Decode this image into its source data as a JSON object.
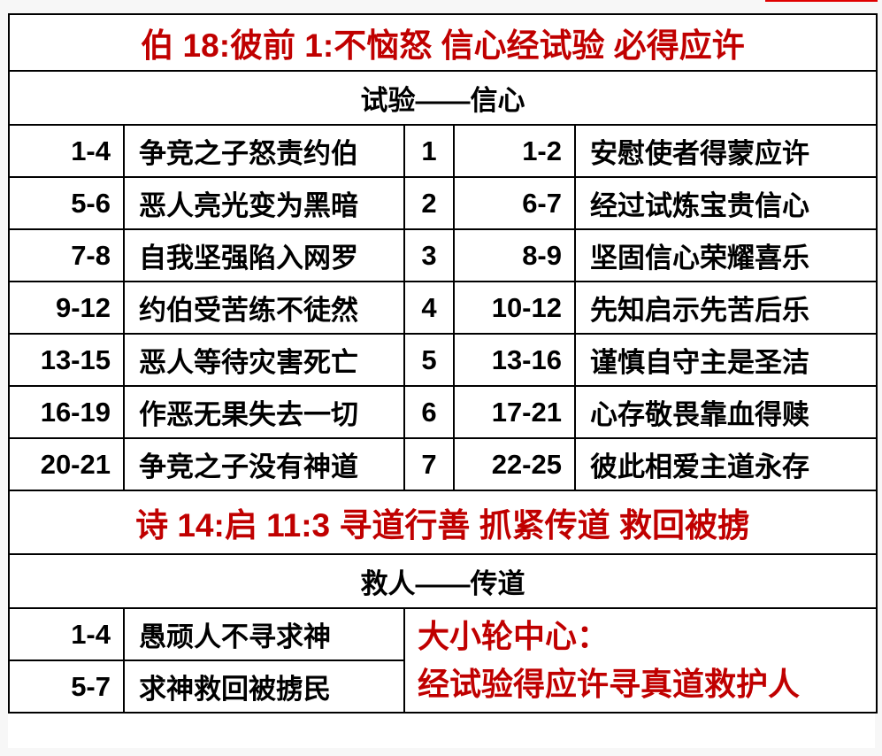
{
  "title1": "伯 18:彼前 1:不恼怒  信心经试验  必得应许",
  "subtitle1": "试验——信心",
  "rows": [
    {
      "a": "1-4",
      "b": "争竞之子怒责约伯",
      "n": "1",
      "c": "1-2",
      "d": "安慰使者得蒙应许"
    },
    {
      "a": "5-6",
      "b": "恶人亮光变为黑暗",
      "n": "2",
      "c": "6-7",
      "d": "经过试炼宝贵信心"
    },
    {
      "a": "7-8",
      "b": "自我坚强陷入网罗",
      "n": "3",
      "c": "8-9",
      "d": "坚固信心荣耀喜乐"
    },
    {
      "a": "9-12",
      "b": "约伯受苦练不徒然",
      "n": "4",
      "c": "10-12",
      "d": "先知启示先苦后乐"
    },
    {
      "a": "13-15",
      "b": "恶人等待灾害死亡",
      "n": "5",
      "c": "13-16",
      "d": "谨慎自守主是圣洁"
    },
    {
      "a": "16-19",
      "b": "作恶无果失去一切",
      "n": "6",
      "c": "17-21",
      "d": "心存敬畏靠血得赎"
    },
    {
      "a": "20-21",
      "b": "争竞之子没有神道",
      "n": "7",
      "c": "22-25",
      "d": "彼此相爱主道永存"
    }
  ],
  "title2": "诗 14:启 11:3 寻道行善  抓紧传道  救回被掳",
  "subtitle2": "救人——传道",
  "rows2": [
    {
      "a": "1-4",
      "b": "愚顽人不寻求神"
    },
    {
      "a": "5-7",
      "b": "求神救回被掳民"
    }
  ],
  "center": {
    "line1": "大小轮中心：",
    "line2": "经试验得应许寻真道救护人"
  },
  "colors": {
    "accent": "#c00000",
    "text": "#000000"
  }
}
